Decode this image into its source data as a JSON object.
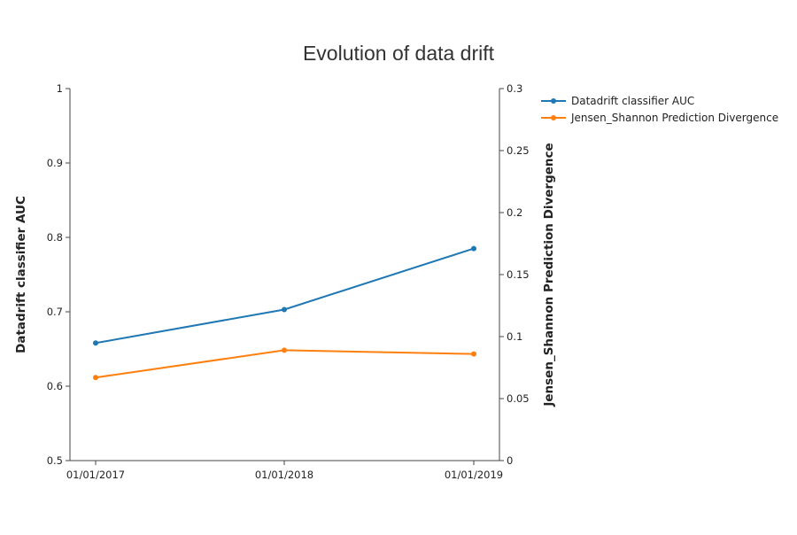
{
  "chart_data": {
    "type": "line",
    "title": "Evolution of data drift",
    "x": [
      "01/01/2017",
      "01/01/2018",
      "01/01/2019"
    ],
    "y_left": {
      "label": "Datadrift classifier AUC",
      "range": [
        0.5,
        1
      ],
      "ticks": [
        "0.5",
        "0.6",
        "0.7",
        "0.8",
        "0.9",
        "1"
      ]
    },
    "y_right": {
      "label": "Jensen_Shannon Prediction Divergence",
      "range": [
        0,
        0.3
      ],
      "ticks": [
        "0",
        "0.05",
        "0.1",
        "0.15",
        "0.2",
        "0.25",
        "0.3"
      ]
    },
    "series": [
      {
        "name": "Datadrift classifier AUC",
        "axis": "left",
        "color": "#1f77b4",
        "values": [
          0.658,
          0.703,
          0.785
        ]
      },
      {
        "name": "Jensen_Shannon Prediction Divergence",
        "axis": "right",
        "color": "#ff7f0e",
        "values": [
          0.067,
          0.089,
          0.086
        ]
      }
    ],
    "grid": false,
    "legend_position": "top-right"
  }
}
